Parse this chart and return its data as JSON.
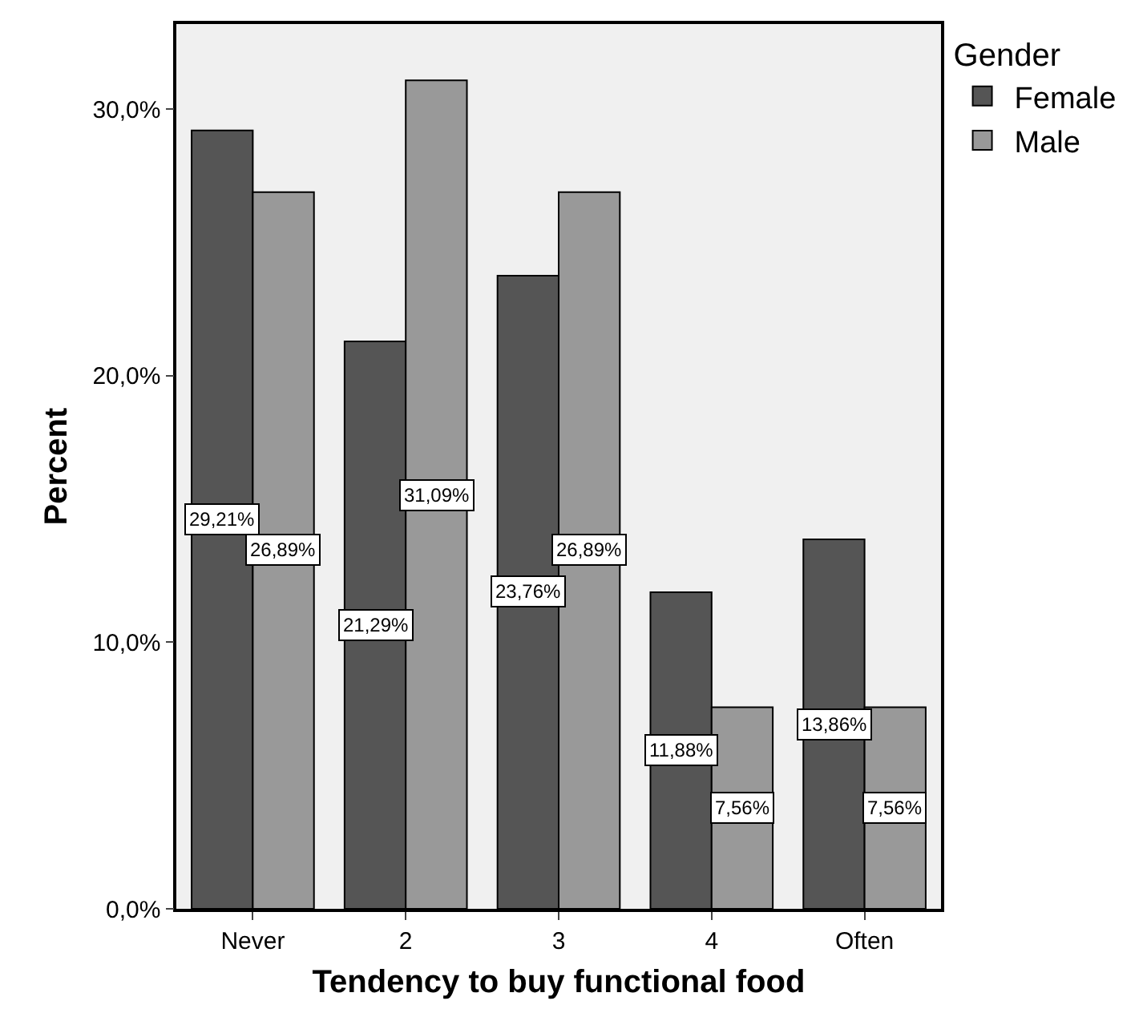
{
  "chart_data": {
    "type": "bar",
    "xlabel": "Tendency to buy functional food",
    "ylabel": "Percent",
    "legend_title": "Gender",
    "legend": "top right",
    "grid": false,
    "categories": [
      "Never",
      "2",
      "3",
      "4",
      "Often"
    ],
    "series": [
      {
        "name": "Female",
        "color": "#555555",
        "values": [
          29.21,
          21.29,
          23.76,
          11.88,
          13.86
        ],
        "value_labels": [
          "29,21%",
          "21,29%",
          "23,76%",
          "11,88%",
          "13,86%"
        ]
      },
      {
        "name": "Male",
        "color": "#999999",
        "values": [
          26.89,
          31.09,
          26.89,
          7.56,
          7.56
        ],
        "value_labels": [
          "26,89%",
          "31,09%",
          "26,89%",
          "7,56%",
          "7,56%"
        ]
      }
    ],
    "ylim": [
      0,
      33.2
    ],
    "yticks": [
      {
        "value": 0,
        "label": "0,0%"
      },
      {
        "value": 10,
        "label": "10,0%"
      },
      {
        "value": 20,
        "label": "20,0%"
      },
      {
        "value": 30,
        "label": "30,0%"
      }
    ]
  }
}
